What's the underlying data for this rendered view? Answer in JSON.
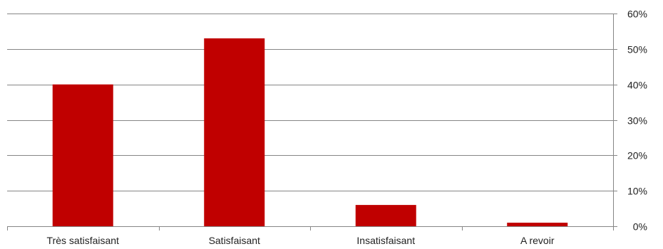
{
  "chart_data": {
    "type": "bar",
    "categories": [
      "Très satisfaisant",
      "Satisfaisant",
      "Insatisfaisant",
      "A revoir"
    ],
    "values": [
      40,
      53,
      6,
      1
    ],
    "ylim": [
      0,
      60
    ],
    "yticks": [
      0,
      10,
      20,
      30,
      40,
      50,
      60
    ],
    "ytick_labels": [
      "0%",
      "10%",
      "20%",
      "30%",
      "40%",
      "50%",
      "60%"
    ],
    "y_axis_position": "right",
    "grid": true,
    "legend": "none",
    "title": "",
    "xlabel": "",
    "ylabel": ""
  },
  "colors": {
    "bar": "#c00000",
    "grid": "#868686",
    "axis": "#868686",
    "text": "#222222"
  }
}
